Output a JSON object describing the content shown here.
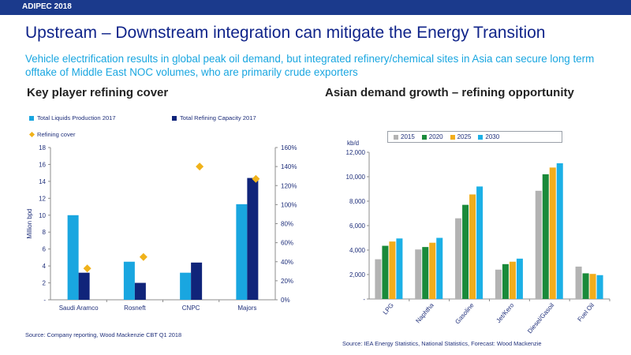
{
  "header": {
    "label": "ADIPEC 2018"
  },
  "title": "Upstream – Downstream integration can mitigate the Energy Transition",
  "subtitle": "Vehicle electrification results in global peak oil demand, but integrated refinery/chemical sites in Asia can secure long term offtake of Middle East NOC volumes, who are primarily crude exporters",
  "left": {
    "heading": "Key player refining cover",
    "source": "Source: Company reporting, Wood Mackenzie  CBT Q1 2018"
  },
  "right": {
    "heading": "Asian demand growth – refining opportunity",
    "source": "Source: IEA Energy Statistics, National Statistics, Forecast: Wood Mackenzie"
  },
  "colors": {
    "production": "#19a6e0",
    "capacity": "#10247a",
    "cover": "#f0b21a",
    "y2015": "#b3b3b3",
    "y2020": "#1a8a3a",
    "y2025": "#f2ad1b",
    "y2030": "#1cb0e6"
  },
  "chart_data": [
    {
      "type": "bar",
      "title": "Key player refining cover",
      "categories": [
        "Saudi Aramco",
        "Rosneft",
        "CNPC",
        "Majors"
      ],
      "series": [
        {
          "name": "Total Liquids Production 2017",
          "axis": "left",
          "values": [
            10.0,
            4.5,
            3.2,
            11.3
          ]
        },
        {
          "name": "Total Refining Capacity 2017",
          "axis": "left",
          "values": [
            3.2,
            2.0,
            4.4,
            14.4
          ]
        },
        {
          "name": "Refining cover",
          "axis": "right",
          "marker": "diamond",
          "values": [
            33,
            45,
            140,
            127
          ]
        }
      ],
      "ylabel": "Million bpd",
      "ylim": [
        0,
        18
      ],
      "yticks": [
        "-",
        "2",
        "4",
        "6",
        "8",
        "10",
        "12",
        "14",
        "16",
        "18"
      ],
      "y2lim": [
        0,
        160
      ],
      "y2ticks": [
        "0%",
        "20%",
        "40%",
        "60%",
        "80%",
        "100%",
        "120%",
        "140%",
        "160%"
      ],
      "legend_position": "top-left"
    },
    {
      "type": "bar",
      "title": "Asian demand growth – refining opportunity",
      "categories": [
        "LPG",
        "Naphtha",
        "Gasoline",
        "Jet/Kero",
        "Diesel/Gasoil",
        "Fuel Oil"
      ],
      "series": [
        {
          "name": "2015",
          "values": [
            3250,
            4050,
            6600,
            2400,
            8850,
            2650
          ]
        },
        {
          "name": "2020",
          "values": [
            4350,
            4250,
            7700,
            2850,
            10200,
            2100
          ]
        },
        {
          "name": "2025",
          "values": [
            4700,
            4600,
            8550,
            3050,
            10750,
            2050
          ]
        },
        {
          "name": "2030",
          "values": [
            4950,
            5000,
            9200,
            3300,
            11100,
            1950
          ]
        }
      ],
      "ylabel": "kb/d",
      "ylim": [
        0,
        12000
      ],
      "yticks": [
        "-",
        "2,000",
        "4,000",
        "6,000",
        "8,000",
        "10,000",
        "12,000"
      ],
      "legend_position": "top"
    }
  ]
}
